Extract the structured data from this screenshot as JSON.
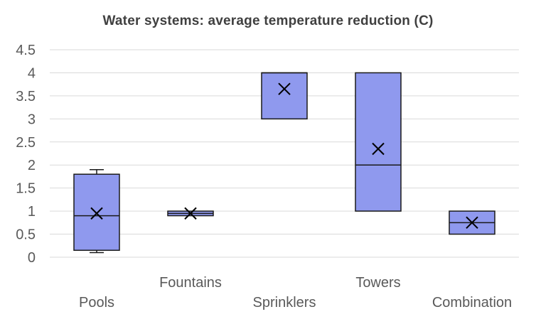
{
  "chart_data": {
    "type": "box",
    "title": "Water systems: average temperature reduction (C)",
    "xlabel": "",
    "ylabel": "",
    "ylim": [
      0,
      4.5
    ],
    "ytick_step": 0.5,
    "yticks": [
      "0",
      "0.5",
      "1",
      "1.5",
      "2",
      "2.5",
      "3",
      "3.5",
      "4",
      "4.5"
    ],
    "grid": true,
    "legend": "none",
    "categories": [
      "Pools",
      "Fountains",
      "Sprinklers",
      "Towers",
      "Combination"
    ],
    "boxes": [
      {
        "category": "Pools",
        "min": 0.1,
        "q1": 0.15,
        "median": 0.9,
        "q3": 1.8,
        "max": 1.9,
        "mean": 0.95
      },
      {
        "category": "Fountains",
        "min": 0.9,
        "q1": 0.9,
        "median": 0.95,
        "q3": 1.0,
        "max": 1.0,
        "mean": 0.95
      },
      {
        "category": "Sprinklers",
        "min": 3.0,
        "q1": 3.0,
        "median": 4.0,
        "q3": 4.0,
        "max": 4.0,
        "mean": 3.65
      },
      {
        "category": "Towers",
        "min": 1.0,
        "q1": 1.0,
        "median": 2.0,
        "q3": 4.0,
        "max": 4.0,
        "mean": 2.35
      },
      {
        "category": "Combination",
        "min": 0.5,
        "q1": 0.5,
        "median": 0.75,
        "q3": 1.0,
        "max": 1.0,
        "mean": 0.75
      }
    ],
    "colors": {
      "box_fill": "#8F99EE",
      "box_stroke": "#1a1a1a",
      "gridline": "#d9d9d9",
      "axis_text": "#595959",
      "title_text": "#404040"
    }
  }
}
